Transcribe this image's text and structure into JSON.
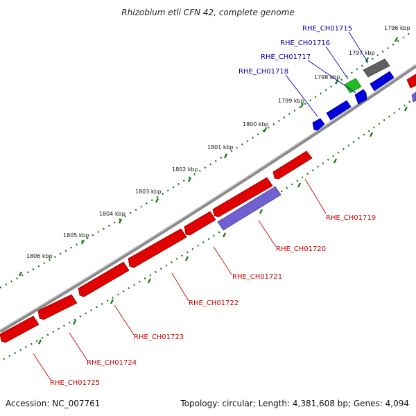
{
  "title": "Rhizobium etli CFN 42, complete genome",
  "footer": {
    "accession": "Accession: NC_007761",
    "summary": "Topology: circular; Length: 4,381,608 bp; Genes: 4,094"
  },
  "colors": {
    "forward_gene": "#e00000",
    "reverse_gene": "#0000dd",
    "rna_gene": "#7060d0",
    "highlight_gene": "#22bb22",
    "pseudo_gene": "#606060",
    "backbone": "#8a8a8a",
    "tick_marks": "#1a7a1a",
    "label_blue": "#0000aa",
    "label_red": "#cc0000"
  },
  "kbp_labels": [
    "1796 kbp",
    "1797 kbp",
    "1798 kbp",
    "1799 kbp",
    "1800 kbp",
    "1801 kbp",
    "1802 kbp",
    "1803 kbp",
    "1804 kbp",
    "1805 kbp",
    "1806 kbp"
  ],
  "gene_labels_blue": [
    "RHE_CH01715",
    "RHE_CH01716",
    "RHE_CH01717",
    "RHE_CH01718"
  ],
  "gene_labels_red": [
    "RHE_CH01719",
    "RHE_CH01720",
    "RHE_CH01721",
    "RHE_CH01722",
    "RHE_CH01723",
    "RHE_CH01724",
    "RHE_CH01725"
  ]
}
